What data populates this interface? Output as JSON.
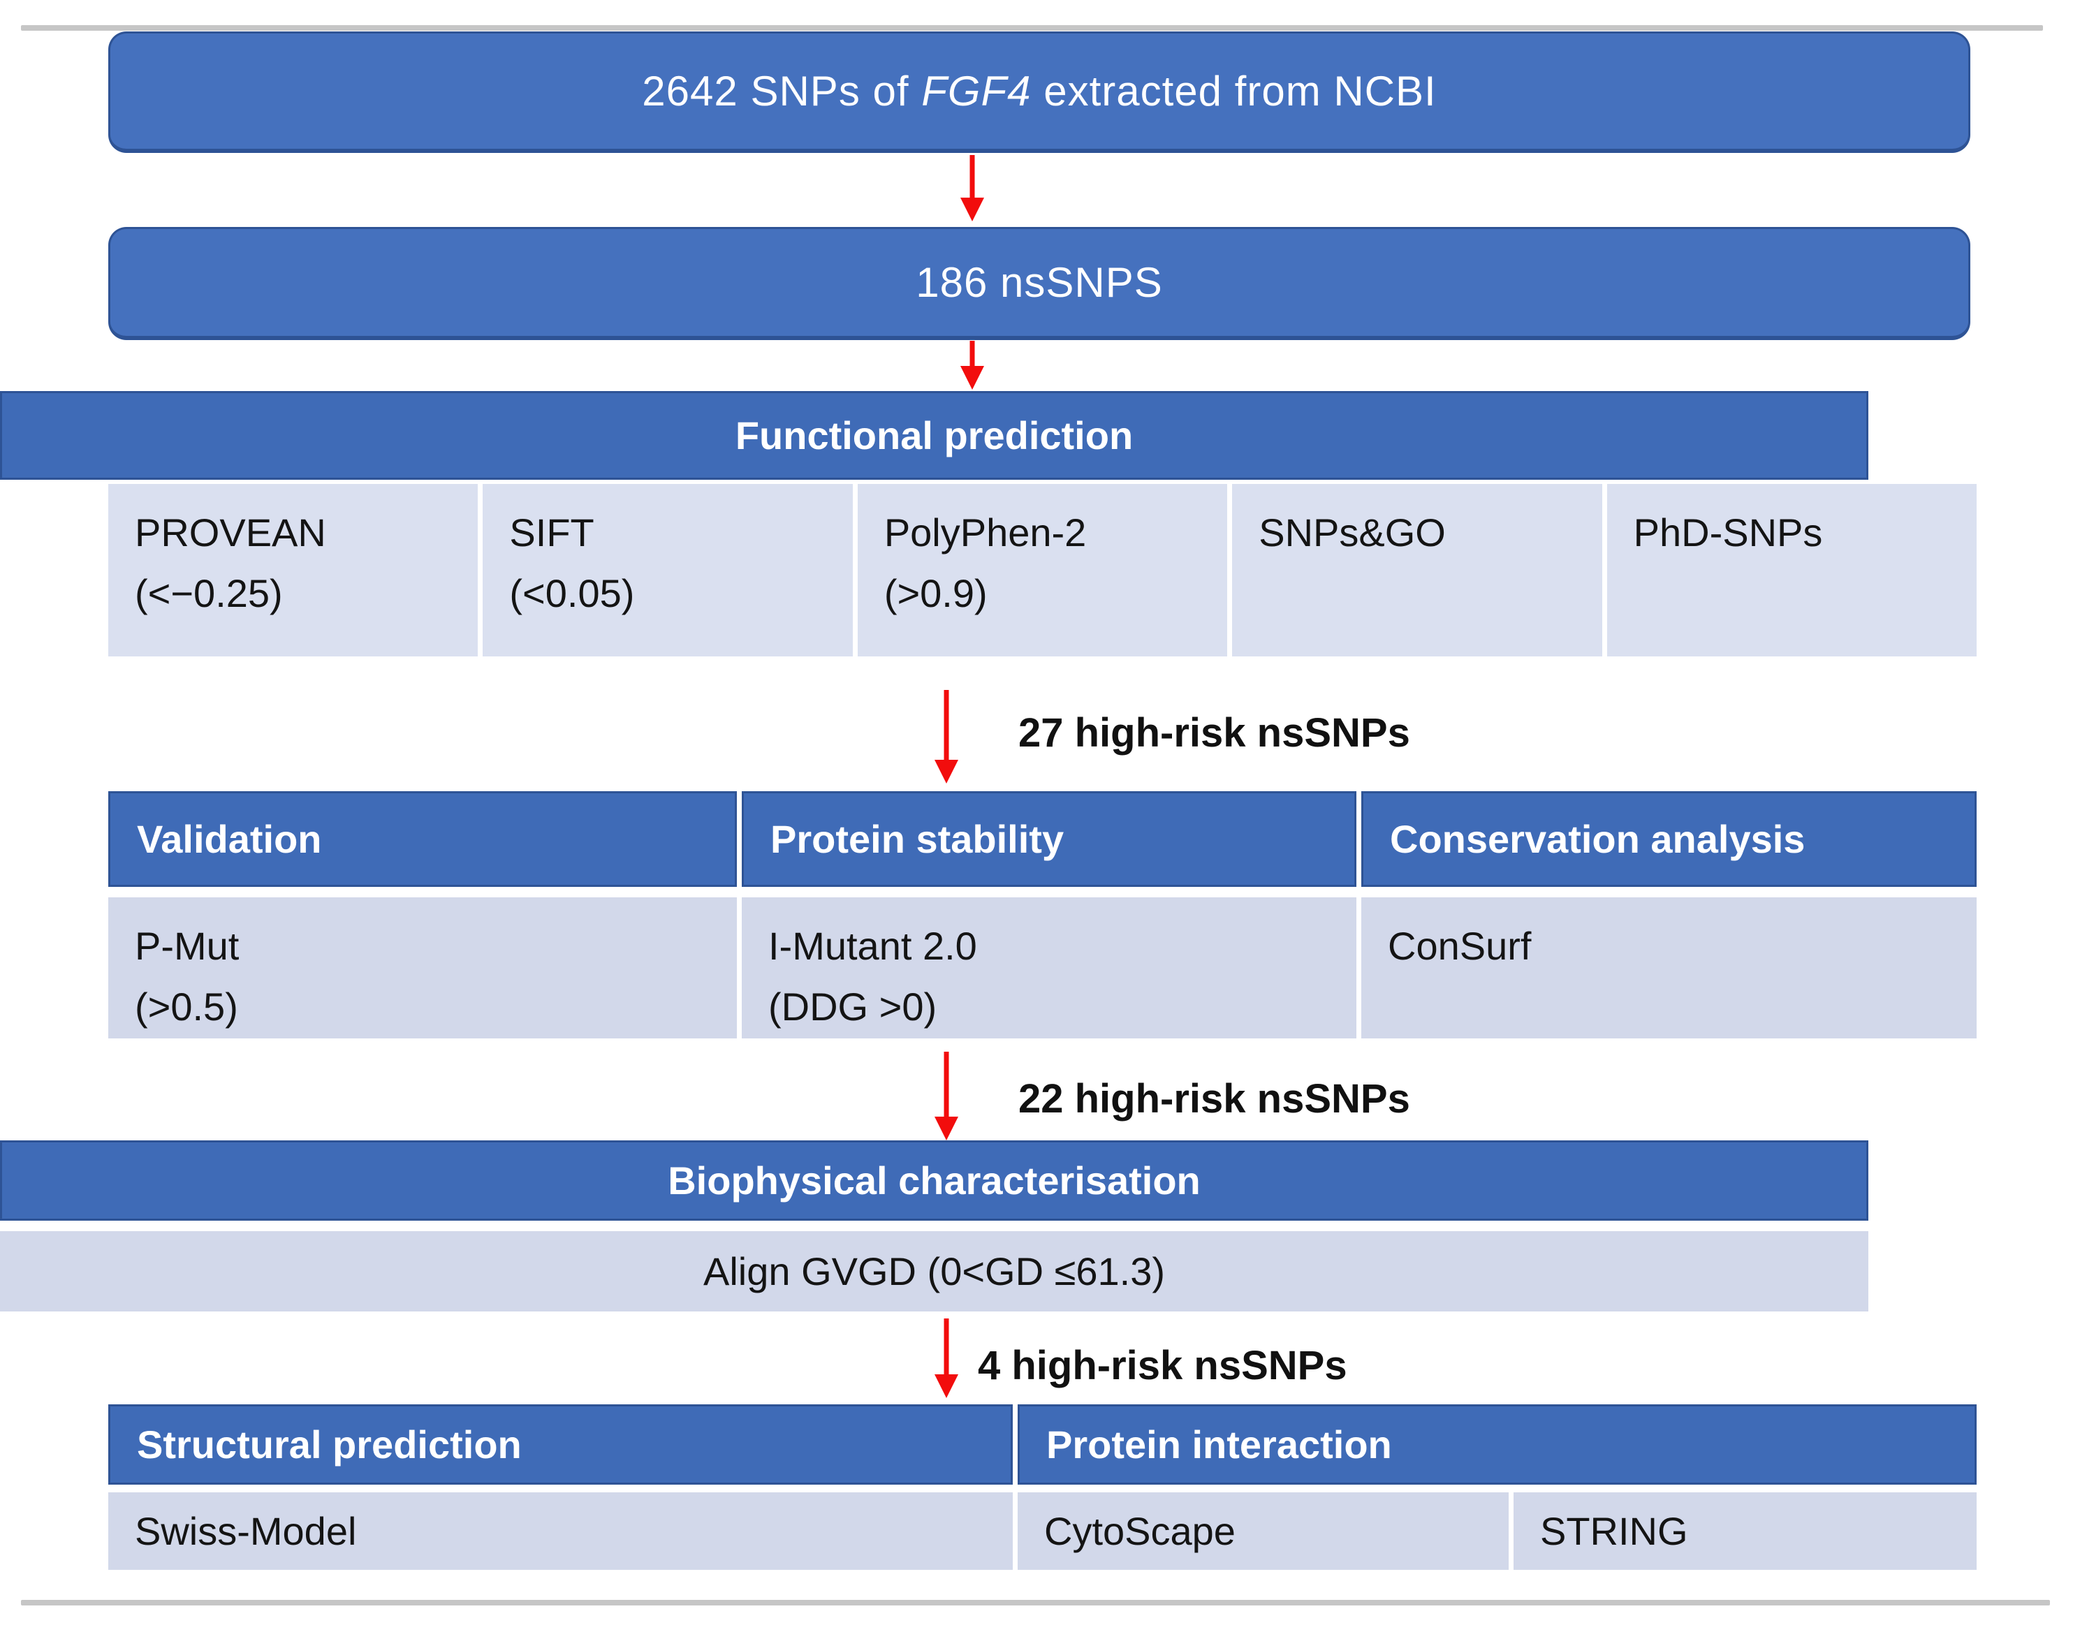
{
  "colors": {
    "box_fill": "#4571BE",
    "box_border": "#2E5395",
    "header_fill": "#3F6BB7",
    "cell_fill_light": "#DAE0F0",
    "cell_fill_mid": "#D2D8EA",
    "arrow_red": "#F20D0D",
    "divider_gray": "#C6C6C6",
    "header_text": "#FFFFFF",
    "body_text": "#141414"
  },
  "flow": {
    "box1": {
      "prefix": "2642 SNPs of ",
      "gene": "FGF4",
      "suffix": " extracted from NCBI"
    },
    "box2": {
      "label": "186 nsSNPS"
    },
    "labels": {
      "after_functional": "27 high-risk nsSNPs",
      "after_validation": "22 high-risk nsSNPs",
      "after_biophysical": "4 high-risk nsSNPs"
    },
    "functional": {
      "header": "Functional prediction",
      "cells": [
        [
          "PROVEAN",
          "(<−0.25)"
        ],
        [
          "SIFT",
          "(<0.05)"
        ],
        [
          "PolyPhen-2",
          "(>0.9)"
        ],
        [
          "SNPs&GO",
          ""
        ],
        [
          "PhD-SNPs",
          ""
        ]
      ]
    },
    "validation": {
      "headers": [
        "Validation",
        "Protein stability",
        "Conservation analysis"
      ],
      "cells": [
        [
          "P-Mut",
          "(>0.5)"
        ],
        [
          "I-Mutant 2.0",
          "(DDG >0)"
        ],
        [
          "ConSurf",
          ""
        ]
      ]
    },
    "biophysical": {
      "header": "Biophysical characterisation",
      "cell": "Align GVGD (0<GD ≤61.3)"
    },
    "structural": {
      "headers": [
        "Structural prediction",
        "Protein interaction"
      ],
      "cells": [
        "Swiss-Model",
        "CytoScape",
        "STRING"
      ]
    }
  }
}
